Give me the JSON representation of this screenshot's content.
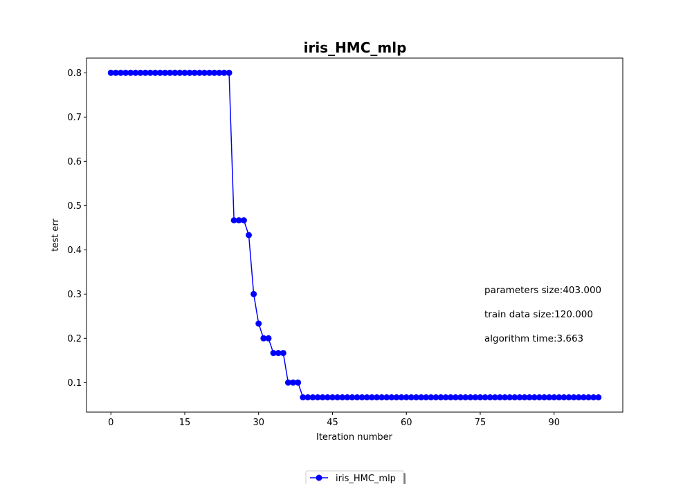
{
  "chart_data": {
    "type": "line",
    "title": "iris_HMC_mlp",
    "xlabel": "Iteration number",
    "ylabel": "test err",
    "xlim": [
      -4.95,
      103.95
    ],
    "ylim": [
      0.0333,
      0.8333
    ],
    "xticks": [
      0,
      15,
      30,
      45,
      60,
      75,
      90
    ],
    "yticks": [
      0.1,
      0.2,
      0.3,
      0.4,
      0.5,
      0.6,
      0.7,
      0.8
    ],
    "grid": false,
    "legend_position": "bottom-center",
    "annotations": [
      "parameters size:403.000",
      "train data size:120.000",
      "algorithm time:3.663"
    ],
    "series": [
      {
        "name": "iris_HMC_mlp",
        "color": "#0000ff",
        "marker": "circle",
        "x": [
          0,
          1,
          2,
          3,
          4,
          5,
          6,
          7,
          8,
          9,
          10,
          11,
          12,
          13,
          14,
          15,
          16,
          17,
          18,
          19,
          20,
          21,
          22,
          23,
          24,
          25,
          26,
          27,
          28,
          29,
          30,
          31,
          32,
          33,
          34,
          35,
          36,
          37,
          38,
          39,
          40,
          41,
          42,
          43,
          44,
          45,
          46,
          47,
          48,
          49,
          50,
          51,
          52,
          53,
          54,
          55,
          56,
          57,
          58,
          59,
          60,
          61,
          62,
          63,
          64,
          65,
          66,
          67,
          68,
          69,
          70,
          71,
          72,
          73,
          74,
          75,
          76,
          77,
          78,
          79,
          80,
          81,
          82,
          83,
          84,
          85,
          86,
          87,
          88,
          89,
          90,
          91,
          92,
          93,
          94,
          95,
          96,
          97,
          98,
          99
        ],
        "y": [
          0.8,
          0.8,
          0.8,
          0.8,
          0.8,
          0.8,
          0.8,
          0.8,
          0.8,
          0.8,
          0.8,
          0.8,
          0.8,
          0.8,
          0.8,
          0.8,
          0.8,
          0.8,
          0.8,
          0.8,
          0.8,
          0.8,
          0.8,
          0.8,
          0.8,
          0.4667,
          0.4667,
          0.4667,
          0.4333,
          0.3,
          0.2333,
          0.2,
          0.2,
          0.1667,
          0.1667,
          0.1667,
          0.1,
          0.1,
          0.1,
          0.0667,
          0.0667,
          0.0667,
          0.0667,
          0.0667,
          0.0667,
          0.0667,
          0.0667,
          0.0667,
          0.0667,
          0.0667,
          0.0667,
          0.0667,
          0.0667,
          0.0667,
          0.0667,
          0.0667,
          0.0667,
          0.0667,
          0.0667,
          0.0667,
          0.0667,
          0.0667,
          0.0667,
          0.0667,
          0.0667,
          0.0667,
          0.0667,
          0.0667,
          0.0667,
          0.0667,
          0.0667,
          0.0667,
          0.0667,
          0.0667,
          0.0667,
          0.0667,
          0.0667,
          0.0667,
          0.0667,
          0.0667,
          0.0667,
          0.0667,
          0.0667,
          0.0667,
          0.0667,
          0.0667,
          0.0667,
          0.0667,
          0.0667,
          0.0667,
          0.0667,
          0.0667,
          0.0667,
          0.0667,
          0.0667,
          0.0667,
          0.0667,
          0.0667,
          0.0667,
          0.0667
        ]
      }
    ]
  }
}
